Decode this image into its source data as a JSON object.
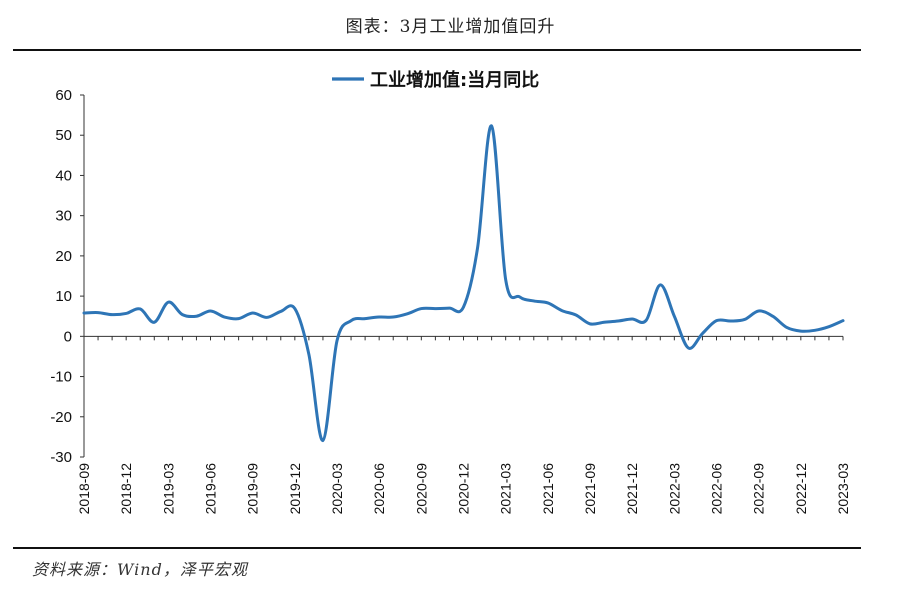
{
  "figure": {
    "title": "图表：3月工业增加值回升",
    "source": "资料来源：Wind，泽平宏观"
  },
  "colors": {
    "series": "#2e75b6",
    "axis": "#333333"
  },
  "chart_data": {
    "type": "line",
    "legend": {
      "position": "top-center",
      "label": "工业增加值:当月同比"
    },
    "ylim": [
      -30,
      60
    ],
    "yticks": [
      -30,
      -20,
      -10,
      0,
      10,
      20,
      30,
      40,
      50,
      60
    ],
    "xtick_labels": [
      "2018-09",
      "2018-12",
      "2019-03",
      "2019-06",
      "2019-09",
      "2019-12",
      "2020-03",
      "2020-06",
      "2020-09",
      "2020-12",
      "2021-03",
      "2021-06",
      "2021-09",
      "2021-12",
      "2022-03",
      "2022-06",
      "2022-09",
      "2022-12",
      "2023-03"
    ],
    "grid": false,
    "series": [
      {
        "name": "工业增加值:当月同比",
        "x": [
          "2018-09",
          "2018-10",
          "2018-11",
          "2018-12",
          "2019-01",
          "2019-02",
          "2019-03",
          "2019-04",
          "2019-05",
          "2019-06",
          "2019-07",
          "2019-08",
          "2019-09",
          "2019-10",
          "2019-11",
          "2019-12",
          "2020-01",
          "2020-02",
          "2020-03",
          "2020-04",
          "2020-05",
          "2020-06",
          "2020-07",
          "2020-08",
          "2020-09",
          "2020-10",
          "2020-11",
          "2020-12",
          "2021-01",
          "2021-02",
          "2021-03",
          "2021-04",
          "2021-05",
          "2021-06",
          "2021-07",
          "2021-08",
          "2021-09",
          "2021-10",
          "2021-11",
          "2021-12",
          "2022-01",
          "2022-02",
          "2022-03",
          "2022-04",
          "2022-05",
          "2022-06",
          "2022-07",
          "2022-08",
          "2022-09",
          "2022-10",
          "2022-11",
          "2022-12",
          "2023-01",
          "2023-02",
          "2023-03"
        ],
        "values": [
          5.8,
          5.9,
          5.4,
          5.7,
          6.8,
          3.5,
          8.5,
          5.4,
          5.0,
          6.3,
          4.8,
          4.4,
          5.8,
          4.7,
          6.2,
          6.9,
          -4.5,
          -25.9,
          -1.1,
          3.9,
          4.4,
          4.8,
          4.8,
          5.6,
          6.9,
          6.9,
          7.0,
          7.3,
          22.0,
          52.3,
          14.1,
          9.8,
          8.8,
          8.3,
          6.4,
          5.3,
          3.1,
          3.5,
          3.8,
          4.3,
          4.0,
          12.8,
          5.0,
          -2.9,
          0.7,
          3.9,
          3.8,
          4.2,
          6.3,
          5.0,
          2.2,
          1.3,
          1.5,
          2.4,
          3.9
        ]
      }
    ]
  }
}
